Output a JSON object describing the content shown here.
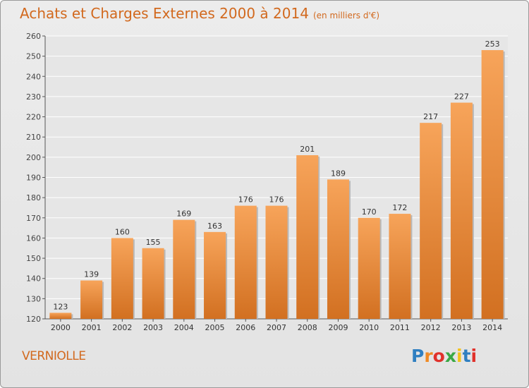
{
  "header": {
    "title": "Achats et Charges Externes 2000 à 2014",
    "unit": "(en milliers d'€)"
  },
  "footer": {
    "commune": "VERNIOLLE",
    "brand": "Proxiti"
  },
  "colors": {
    "bar_top": "#f7a45a",
    "bar_bottom": "#d27021",
    "title": "#d2691e",
    "grid": "#ffffff",
    "logo": [
      "#2f7fc1",
      "#f08a24",
      "#e0312b",
      "#3aa845",
      "#f3c21d",
      "#2f7fc1",
      "#e0312b"
    ]
  },
  "chart_data": {
    "type": "bar",
    "title": "Achats et Charges Externes 2000 à 2014",
    "subtitle": "(en milliers d'€)",
    "categories": [
      "2000",
      "2001",
      "2002",
      "2003",
      "2004",
      "2005",
      "2006",
      "2007",
      "2008",
      "2009",
      "2010",
      "2011",
      "2012",
      "2013",
      "2014"
    ],
    "values": [
      123,
      139,
      160,
      155,
      169,
      163,
      176,
      176,
      201,
      189,
      170,
      172,
      217,
      227,
      253
    ],
    "ylim": [
      120,
      260
    ],
    "yticks": [
      120,
      130,
      140,
      150,
      160,
      170,
      180,
      190,
      200,
      210,
      220,
      230,
      240,
      250,
      260
    ],
    "grid": true,
    "data_labels": true
  }
}
